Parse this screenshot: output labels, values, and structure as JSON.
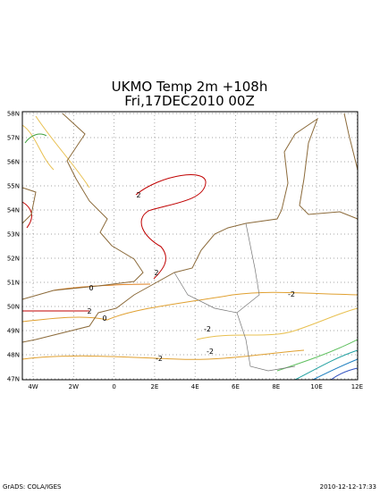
{
  "header": {
    "title_line1": "UKMO Temp 2m   +108h",
    "title_line2": "Fri,17DEC2010  00Z"
  },
  "map": {
    "lat_labels": [
      "58N",
      "57N",
      "56N",
      "55N",
      "54N",
      "53N",
      "52N",
      "51N",
      "50N",
      "49N",
      "48N",
      "47N"
    ],
    "lon_labels": [
      "4W",
      "2W",
      "0",
      "2E",
      "4E",
      "6E",
      "8E",
      "10E",
      "12E"
    ],
    "contour_labels": [
      "2",
      "2",
      "2",
      "0",
      "0",
      "-2",
      "-2",
      "-2",
      "-2"
    ]
  },
  "footer": {
    "left": "GrADS: COLA/IGES",
    "right": "2010-12-12-17:33"
  }
}
